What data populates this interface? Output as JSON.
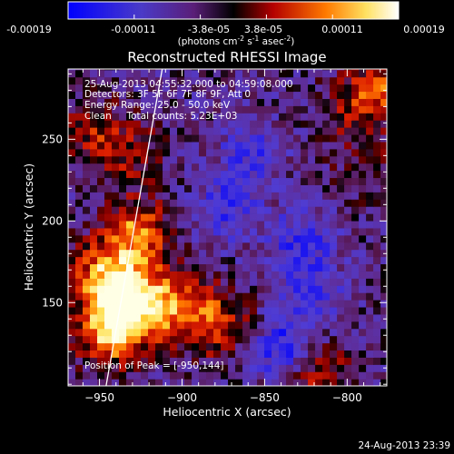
{
  "colorbar": {
    "ticks": [
      "-0.00019",
      "-0.00011",
      "-3.8e-05",
      "3.8e-05",
      "0.00011",
      "0.00019"
    ],
    "units_prefix": "(photons cm",
    "units_exp1": "-2",
    "units_mid1": " s",
    "units_exp2": "-1",
    "units_mid2": " asec",
    "units_exp3": "-2",
    "units_suffix": ")"
  },
  "chart_data": {
    "type": "heatmap",
    "title": "Reconstructed RHESSI Image",
    "xlabel": "Heliocentric X (arcsec)",
    "ylabel": "Heliocentric Y (arcsec)",
    "xlim": [
      -969,
      -776
    ],
    "ylim": [
      99,
      293
    ],
    "xticks": [
      -950,
      -900,
      -850,
      -800
    ],
    "yticks": [
      150,
      200,
      250
    ],
    "xtick_labels": [
      "−950",
      "−900",
      "−850",
      "−800"
    ],
    "ytick_labels": [
      "150",
      "200",
      "250"
    ],
    "colorscale": {
      "min": -0.00019,
      "max": 0.00019,
      "colors": [
        "#0000ff",
        "#6a3fbf",
        "#5a0f30",
        "#000000",
        "#b40000",
        "#ff8a00",
        "#ffffa0",
        "#ffffff"
      ]
    },
    "annotations": [
      "25-Aug-2013 04:55:32.000 to 04:59:08.000",
      "Detectors: 3F 5F 6F 7F 8F 9F, Att 0",
      "Energy Range: 25.0 - 50.0 keV",
      "Clean     Total counts: 5.23E+03"
    ],
    "peak_label": "Position of Peak = [-950,144]",
    "peak": {
      "x": -950,
      "y": 144
    },
    "limb_line": [
      [
        -946,
        99
      ],
      [
        -912,
        293
      ]
    ],
    "bright_sources": [
      {
        "x": -935,
        "y": 150,
        "strength": 1.0
      },
      {
        "x": -945,
        "y": 130,
        "strength": 0.8
      },
      {
        "x": -950,
        "y": 165,
        "strength": 0.55
      },
      {
        "x": -930,
        "y": 190,
        "strength": 0.7
      },
      {
        "x": -905,
        "y": 145,
        "strength": 0.6
      },
      {
        "x": -880,
        "y": 135,
        "strength": 0.5
      },
      {
        "x": -960,
        "y": 255,
        "strength": 0.35
      },
      {
        "x": -935,
        "y": 240,
        "strength": 0.35
      },
      {
        "x": -780,
        "y": 280,
        "strength": 0.5
      },
      {
        "x": -800,
        "y": 265,
        "strength": 0.3
      },
      {
        "x": -790,
        "y": 230,
        "strength": 0.2
      },
      {
        "x": -820,
        "y": 105,
        "strength": 0.45
      }
    ],
    "negative_sources": [
      {
        "x": -840,
        "y": 120,
        "strength": 0.7
      },
      {
        "x": -875,
        "y": 205,
        "strength": 0.5
      },
      {
        "x": -860,
        "y": 240,
        "strength": 0.45
      },
      {
        "x": -830,
        "y": 185,
        "strength": 0.5
      },
      {
        "x": -825,
        "y": 155,
        "strength": 0.4
      }
    ]
  },
  "footer": {
    "timestamp": "24-Aug-2013 23:39"
  }
}
